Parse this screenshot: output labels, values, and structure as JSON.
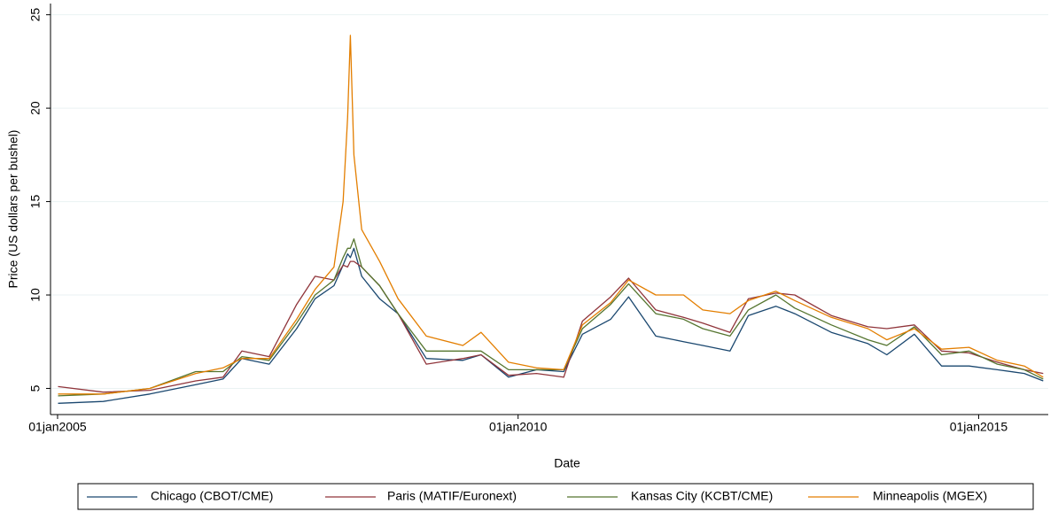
{
  "chart_data": {
    "type": "line",
    "x_label": "Date",
    "y_label": "Price (US dollars per bushel)",
    "x": [
      "2005-01-03",
      "2005-07-01",
      "2006-01-02",
      "2006-07-03",
      "2006-10-19",
      "2007-01-02",
      "2007-04-20",
      "2007-08-07",
      "2007-10-19",
      "2008-01-02",
      "2008-02-07",
      "2008-02-25",
      "2008-03-07",
      "2008-03-21",
      "2008-04-21",
      "2008-07-01",
      "2008-09-12",
      "2009-01-02",
      "2009-05-27",
      "2009-08-07",
      "2009-11-24",
      "2010-03-15",
      "2010-07-01",
      "2010-09-13",
      "2011-01-03",
      "2011-03-15",
      "2011-07-01",
      "2011-10-19",
      "2012-01-03",
      "2012-04-20",
      "2012-07-02",
      "2012-10-19",
      "2013-01-02",
      "2013-05-27",
      "2013-10-19",
      "2014-01-02",
      "2014-04-21",
      "2014-08-07",
      "2014-11-24",
      "2015-03-16",
      "2015-07-01",
      "2015-09-14"
    ],
    "series": [
      {
        "name": "Chicago (CBOT/CME)",
        "color": "#1a476f",
        "values": [
          4.2,
          4.3,
          4.7,
          5.2,
          5.5,
          6.6,
          6.3,
          8.2,
          9.8,
          10.5,
          11.6,
          12.2,
          12.0,
          12.5,
          11.0,
          9.8,
          9.0,
          6.6,
          6.5,
          6.8,
          5.6,
          6.0,
          5.9,
          7.9,
          8.7,
          9.9,
          7.8,
          7.5,
          7.3,
          7.0,
          8.9,
          9.4,
          9.0,
          8.0,
          7.4,
          6.8,
          7.9,
          6.2,
          6.2,
          6.0,
          5.8,
          5.4
        ]
      },
      {
        "name": "Paris (MATIF/Euronext)",
        "color": "#90353b",
        "values": [
          5.1,
          4.8,
          4.9,
          5.4,
          5.6,
          7.0,
          6.7,
          9.5,
          11.0,
          10.8,
          11.6,
          11.5,
          11.8,
          11.8,
          11.5,
          10.5,
          9.0,
          6.3,
          6.6,
          6.8,
          5.7,
          5.8,
          5.6,
          8.6,
          9.9,
          10.9,
          9.2,
          8.8,
          8.5,
          8.0,
          9.8,
          10.1,
          10.0,
          8.9,
          8.3,
          8.2,
          8.4,
          7.0,
          6.9,
          6.4,
          6.0,
          5.8
        ]
      },
      {
        "name": "Kansas City (KCBT/CME)",
        "color": "#55752f",
        "values": [
          4.6,
          4.7,
          5.0,
          5.9,
          5.9,
          6.7,
          6.5,
          8.5,
          10.0,
          10.8,
          12.0,
          12.5,
          12.5,
          13.0,
          11.5,
          10.5,
          9.0,
          7.0,
          7.0,
          7.0,
          6.0,
          6.0,
          6.0,
          8.2,
          9.5,
          10.6,
          9.0,
          8.7,
          8.2,
          7.8,
          9.2,
          10.0,
          9.3,
          8.4,
          7.6,
          7.3,
          8.3,
          6.8,
          7.0,
          6.3,
          6.0,
          5.5
        ]
      },
      {
        "name": "Minneapolis (MGEX)",
        "color": "#e37e00",
        "values": [
          4.7,
          4.7,
          5.0,
          5.8,
          6.1,
          6.6,
          6.6,
          8.7,
          10.3,
          11.5,
          15.0,
          19.5,
          23.9,
          17.5,
          13.5,
          11.8,
          9.8,
          7.8,
          7.3,
          8.0,
          6.4,
          6.1,
          6.0,
          8.4,
          9.6,
          10.8,
          10.0,
          10.0,
          9.2,
          9.0,
          9.7,
          10.2,
          9.7,
          8.8,
          8.2,
          7.6,
          8.2,
          7.1,
          7.2,
          6.5,
          6.2,
          5.6
        ]
      }
    ],
    "xlim": [
      "2004-12-04",
      "2015-10-04"
    ],
    "xticks": [
      {
        "value": "2005-01-01",
        "label": "01jan2005"
      },
      {
        "value": "2010-01-01",
        "label": "01jan2010"
      },
      {
        "value": "2015-01-01",
        "label": "01jan2015"
      }
    ],
    "ylim": [
      3.6,
      25.6
    ],
    "yticks": [
      5,
      10,
      15,
      20,
      25
    ],
    "grid": true,
    "legend": "bottom"
  }
}
